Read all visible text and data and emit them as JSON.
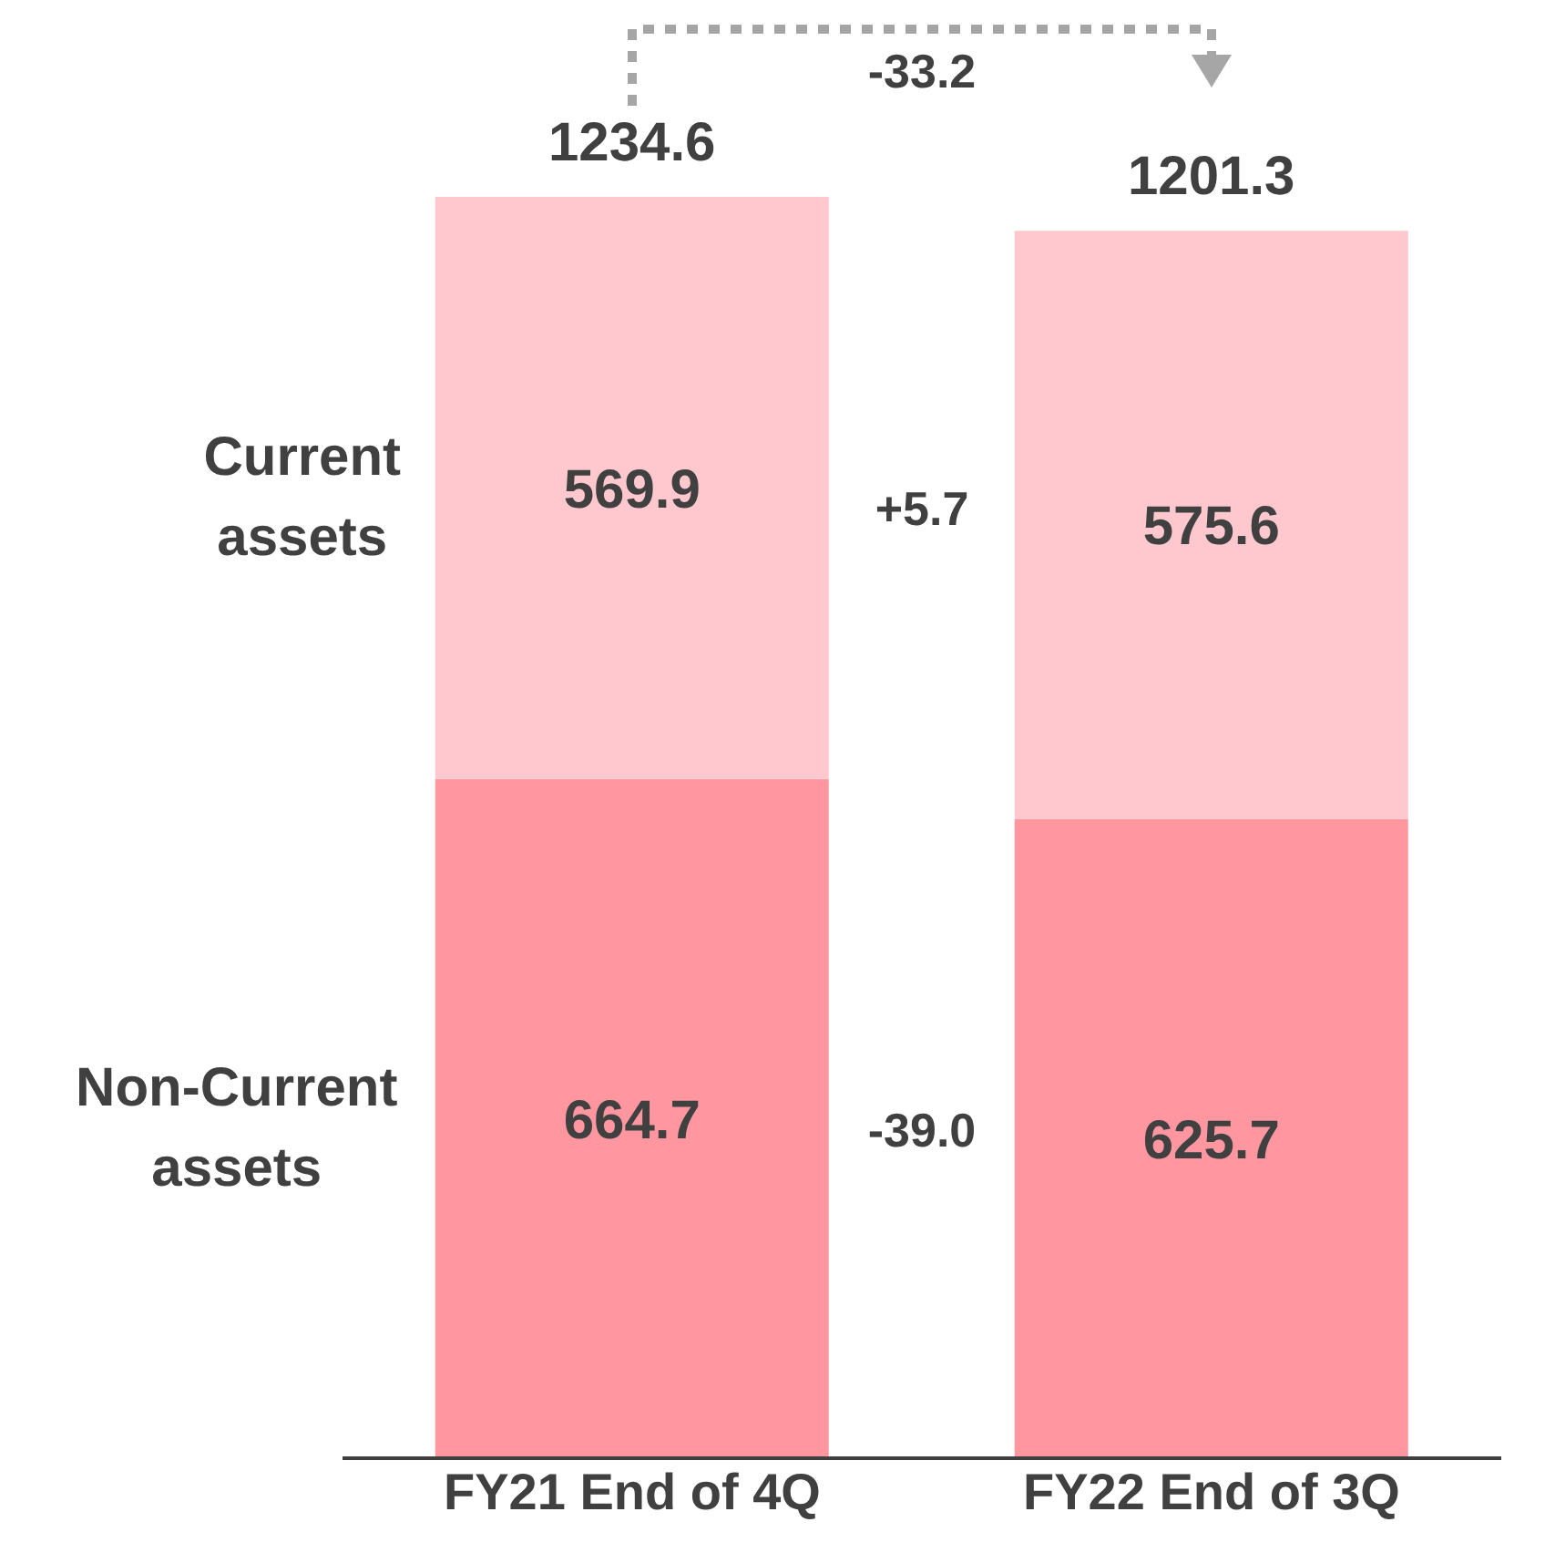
{
  "chart_data": {
    "type": "bar",
    "stacked": true,
    "categories": [
      "FY21 End of 4Q",
      "FY22 End of 3Q"
    ],
    "series": [
      {
        "name": "Non-Current assets",
        "color": "#ff96a0",
        "values": [
          664.7,
          625.7
        ]
      },
      {
        "name": "Current assets",
        "color": "#ffc8ce",
        "values": [
          569.9,
          575.6
        ]
      }
    ],
    "data_labels": true,
    "totals": [
      "1234.6",
      "1201.3"
    ],
    "annotations": [
      "-33.2",
      "+5.7",
      "-39.0"
    ],
    "tick_labels": "x",
    "legend": false,
    "grid": false
  }
}
